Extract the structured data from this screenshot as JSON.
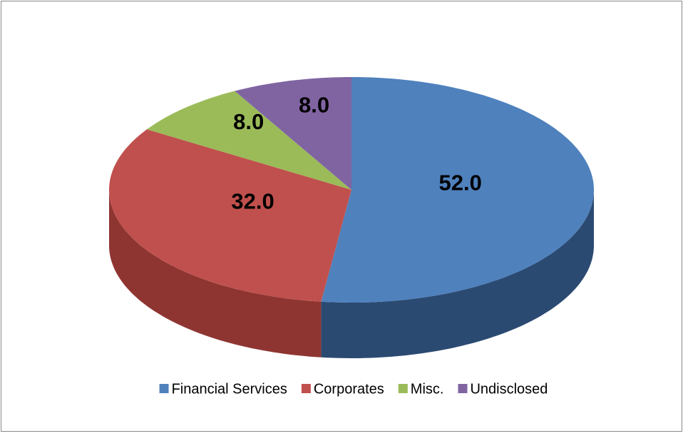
{
  "chart_data": {
    "type": "pie",
    "three_d": true,
    "categories": [
      "Financial Services",
      "Corporates",
      "Misc.",
      "Undisclosed"
    ],
    "values": [
      52,
      32,
      8,
      8
    ],
    "value_labels": [
      "52.0",
      "32.0",
      "8.0",
      "8.0"
    ],
    "colors": [
      "#4f81bd",
      "#c0504d",
      "#9bbb59",
      "#8064a2"
    ],
    "side_colors": [
      "#2b4a72",
      "#8e3532",
      "#6f8a3c",
      "#5c4777"
    ],
    "legend": "bottom"
  }
}
